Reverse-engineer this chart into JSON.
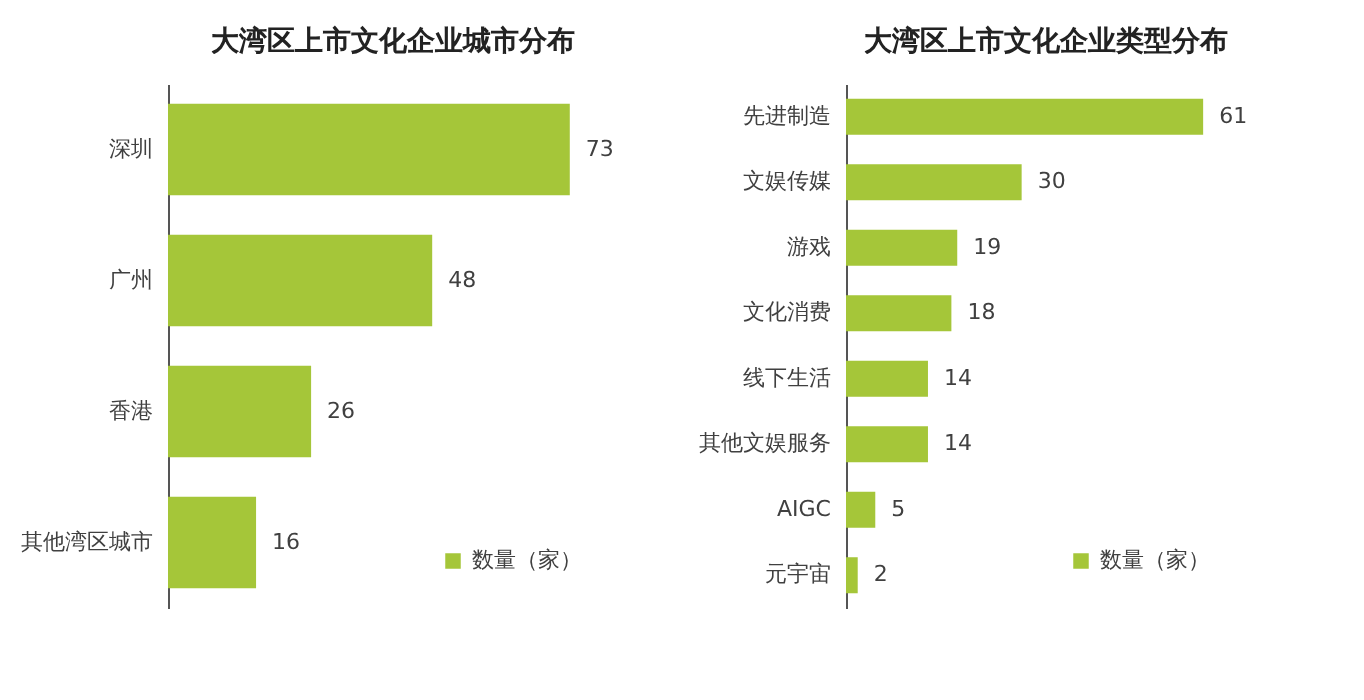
{
  "chart_data": [
    {
      "type": "bar",
      "orientation": "horizontal",
      "title": "大湾区上市文化企业城市分布",
      "categories": [
        "深圳",
        "广州",
        "香港",
        "其他湾区城市"
      ],
      "series": [
        {
          "name": "数量（家）",
          "color": "#a5c639",
          "values": [
            73,
            48,
            26,
            16
          ]
        }
      ],
      "data_labels": true,
      "legend": "bottom right",
      "tick_labels": "y"
    },
    {
      "type": "bar",
      "orientation": "horizontal",
      "title": "大湾区上市文化企业类型分布",
      "categories": [
        "先进制造",
        "文娱传媒",
        "游戏",
        "文化消费",
        "线下生活",
        "其他文娱服务",
        "AIGC",
        "元宇宙"
      ],
      "series": [
        {
          "name": "数量（家）",
          "color": "#a5c639",
          "values": [
            61,
            30,
            19,
            18,
            14,
            14,
            5,
            2
          ]
        }
      ],
      "data_labels": true,
      "legend": "bottom right",
      "tick_labels": "y"
    }
  ]
}
